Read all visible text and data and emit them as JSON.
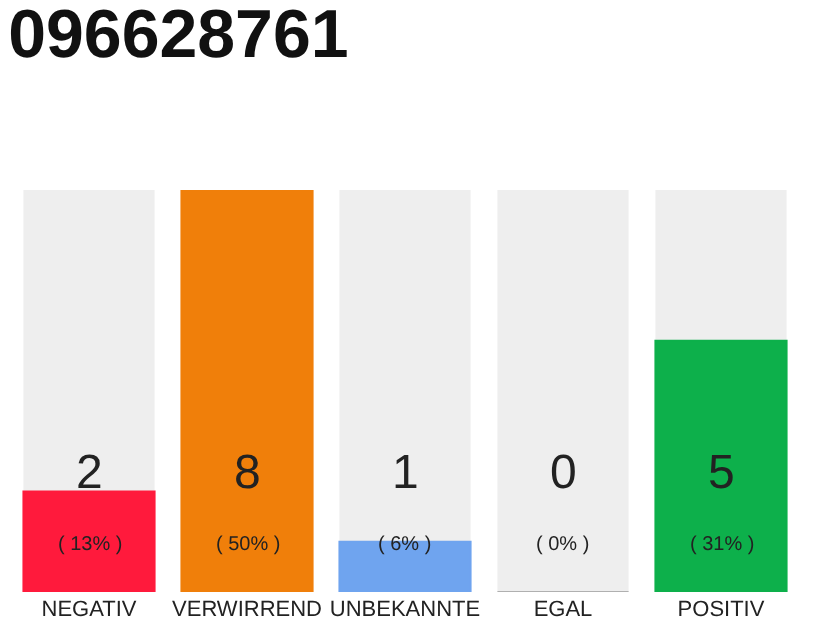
{
  "chart_data": {
    "type": "bar",
    "title": "096628761",
    "categories": [
      "NEGATIV",
      "VERWIRREND",
      "UNBEKANNTE",
      "EGAL",
      "POSITIV"
    ],
    "values": [
      2,
      8,
      1,
      0,
      5
    ],
    "colors": [
      "#ff1a3c",
      "#f07f0a",
      "#6fa4ef",
      "#b0b0b0",
      "#0db04b"
    ],
    "value_labels": [
      "2\n( 13% )",
      "8\n( 50% )",
      "1\n( 6% )",
      "0\n( 0% )",
      "5\n( 31% )"
    ],
    "grid": false,
    "legend": false
  }
}
